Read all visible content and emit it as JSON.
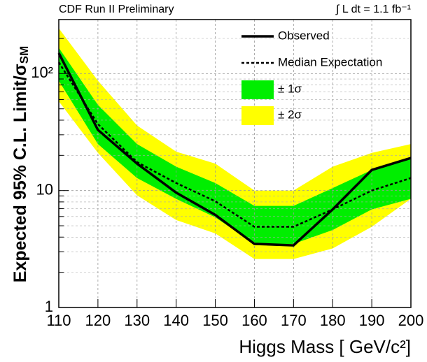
{
  "chart_data": {
    "type": "line",
    "title": "CDF Run II Preliminary",
    "annotation": "∫ L dt = 1.1 fb⁻¹",
    "xlabel": "Higgs Mass [ GeV/c²]",
    "ylabel": "Expected 95% C.L. Limit/σ",
    "ylabel_sub": "SM",
    "x": [
      110,
      120,
      130,
      140,
      150,
      160,
      170,
      180,
      190,
      200
    ],
    "xlim": [
      110,
      200
    ],
    "xticks": [
      110,
      120,
      130,
      140,
      150,
      160,
      170,
      180,
      190,
      200
    ],
    "ylim": [
      1,
      290
    ],
    "yscale": "log",
    "yticks": [
      1,
      10,
      {
        "value": 100,
        "label": "10²"
      }
    ],
    "yminorticks": [
      2,
      3,
      4,
      5,
      6,
      7,
      8,
      9,
      20,
      30,
      40,
      50,
      60,
      70,
      80,
      90,
      200
    ],
    "grid": true,
    "legend": "upper right",
    "series": [
      {
        "name": "Observed",
        "color": "#000000",
        "style": "solid",
        "values": [
          150,
          33,
          17,
          9.6,
          6.2,
          3.5,
          3.4,
          6.9,
          15,
          19
        ]
      },
      {
        "name": "Median Expectation",
        "color": "#000000",
        "style": "dashed",
        "values": [
          125,
          37,
          17.5,
          11.6,
          8.1,
          4.9,
          4.9,
          6.9,
          10,
          12.8
        ]
      },
      {
        "name": "± 1σ",
        "color": "#00ee00",
        "style": "band",
        "values": [
          166,
          54,
          25,
          16,
          11.6,
          7.4,
          7.4,
          10.5,
          15,
          19.4
        ],
        "lower": [
          87,
          25,
          12.8,
          8.5,
          5.9,
          3.5,
          3.5,
          4.6,
          6.9,
          8.5
        ]
      },
      {
        "name": "± 2σ",
        "color": "#ffff00",
        "style": "band",
        "values": [
          244,
          87,
          36,
          21.5,
          17,
          10,
          10,
          16,
          21,
          25
        ],
        "lower": [
          58,
          21,
          9.1,
          5.6,
          4.3,
          2.6,
          2.6,
          3.2,
          4.9,
          8.5
        ]
      }
    ]
  }
}
